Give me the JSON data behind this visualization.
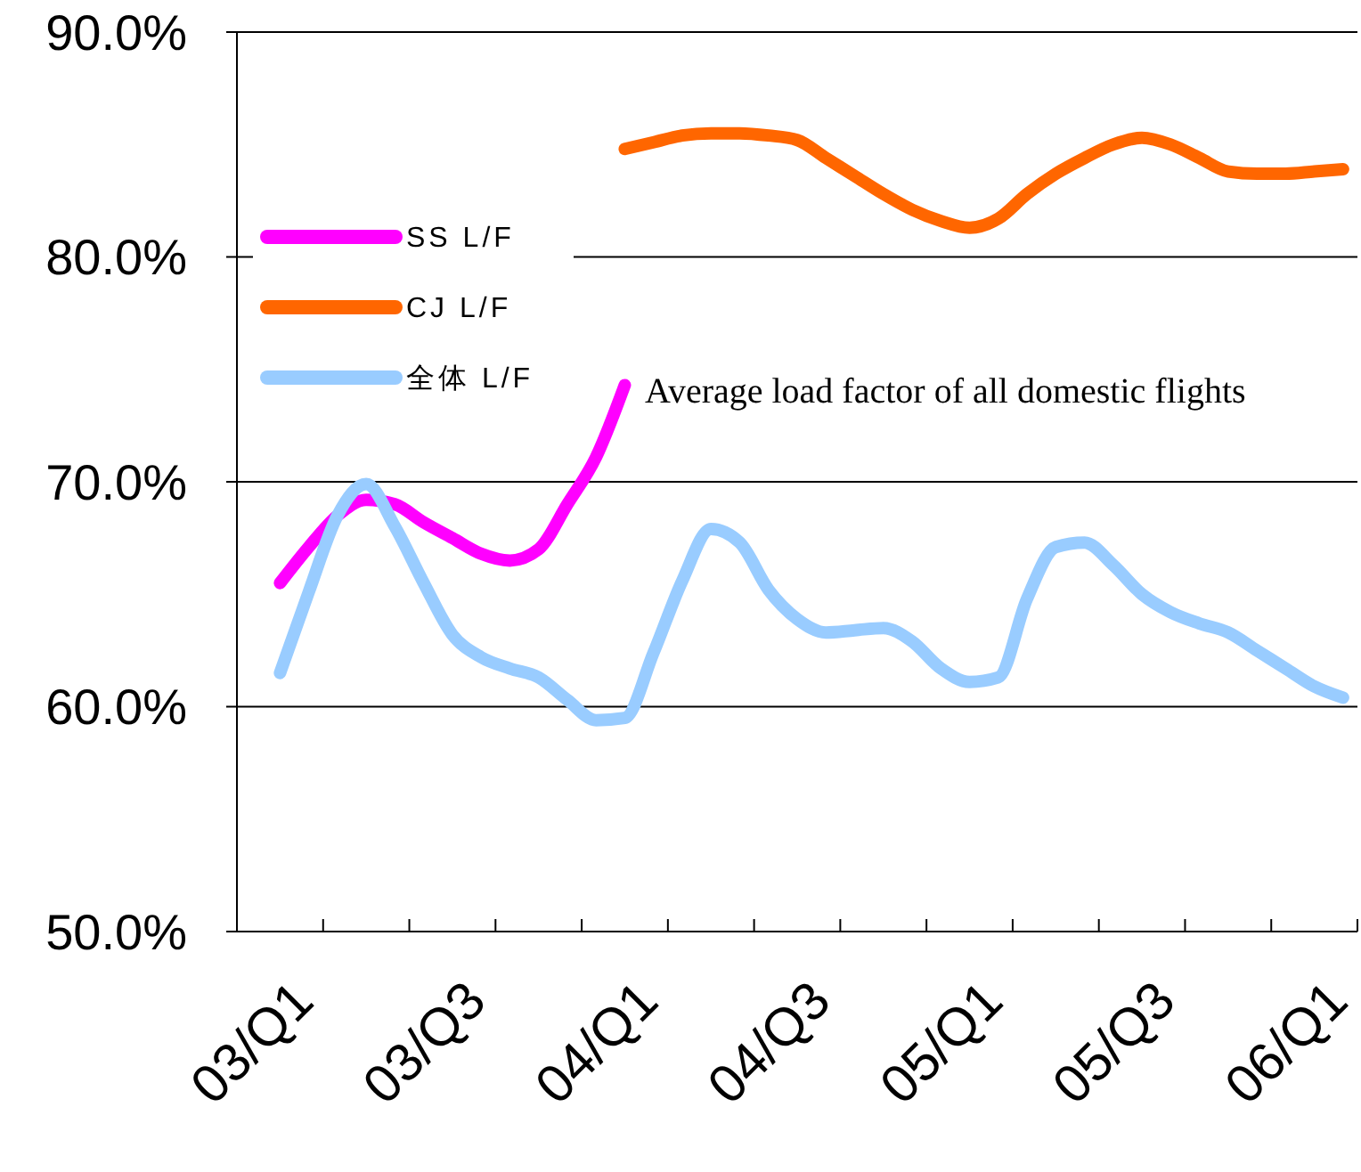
{
  "chart_data": {
    "type": "line",
    "categories": [
      "03/Q1",
      null,
      null,
      null,
      null,
      null,
      "03/Q3",
      null,
      null,
      null,
      null,
      null,
      "04/Q1",
      null,
      null,
      null,
      null,
      null,
      "04/Q3",
      null,
      null,
      null,
      null,
      null,
      "05/Q1",
      null,
      null,
      null,
      null,
      null,
      "05/Q3",
      null,
      null,
      null,
      null,
      null,
      "06/Q1",
      null,
      null
    ],
    "series": [
      {
        "name": "SS L/F",
        "color": "#ff00ff",
        "values": [
          null,
          65.5,
          67.1,
          68.5,
          69.2,
          69.0,
          68.2,
          67.5,
          66.8,
          66.5,
          67.0,
          69.0,
          71.1,
          74.3,
          null,
          null,
          null,
          null,
          null,
          null,
          null,
          null,
          null,
          null,
          null,
          null,
          null,
          null,
          null,
          null,
          null,
          null,
          null,
          null,
          null,
          null,
          null,
          null,
          null
        ]
      },
      {
        "name": "CJ L/F",
        "color": "#ff6600",
        "values": [
          null,
          null,
          null,
          null,
          null,
          null,
          null,
          null,
          null,
          null,
          null,
          null,
          null,
          84.8,
          85.1,
          85.4,
          85.5,
          85.5,
          85.4,
          85.2,
          84.4,
          83.6,
          82.8,
          82.1,
          81.6,
          81.3,
          81.7,
          82.8,
          83.7,
          84.4,
          85.0,
          85.3,
          85.0,
          84.4,
          83.8,
          83.7,
          83.7,
          83.8,
          83.9
        ]
      },
      {
        "name": "全体 L/F",
        "color": "#99ccff",
        "values": [
          null,
          61.5,
          65.1,
          68.5,
          69.9,
          68.0,
          65.5,
          63.2,
          62.2,
          61.7,
          61.3,
          60.3,
          59.4,
          59.5,
          62.4,
          65.6,
          67.9,
          67.3,
          65.2,
          63.9,
          63.3,
          63.4,
          63.5,
          62.9,
          61.7,
          61.1,
          61.3,
          64.8,
          67.1,
          67.3,
          66.3,
          65.0,
          64.2,
          63.7,
          63.3,
          62.5,
          61.7,
          60.9,
          60.4
        ]
      }
    ],
    "ylim": [
      50,
      90
    ],
    "yticks": [
      {
        "value": 50,
        "label": "50.0%"
      },
      {
        "value": 60,
        "label": "60.0%"
      },
      {
        "value": 70,
        "label": "70.0%"
      },
      {
        "value": 80,
        "label": "80.0%"
      },
      {
        "value": 90,
        "label": "90.0%"
      }
    ],
    "grid": "y",
    "legend": "top left",
    "marker": "none",
    "line_style": "solid",
    "annotations": [
      "Average load factor of all domestic flights"
    ]
  }
}
